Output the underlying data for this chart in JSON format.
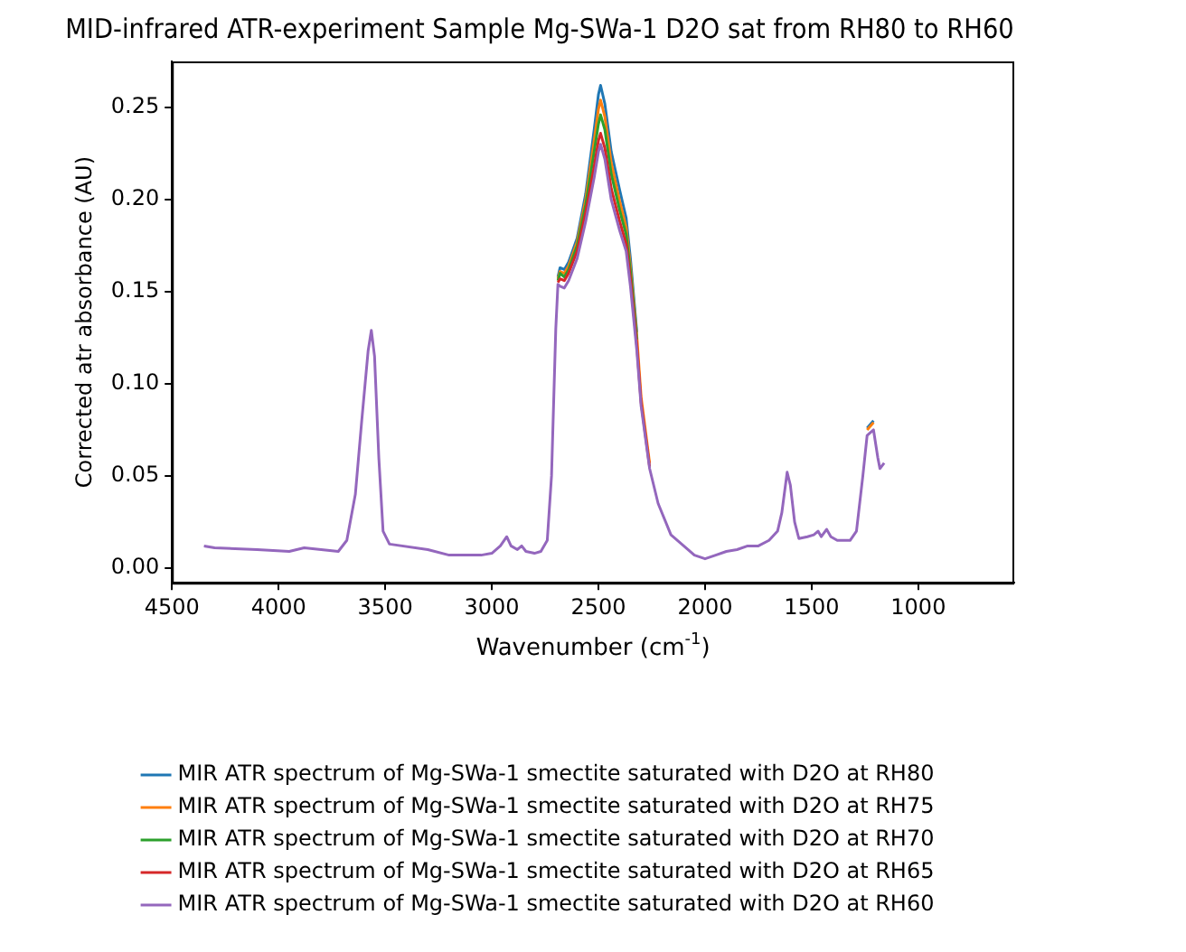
{
  "chart_data": {
    "type": "line",
    "title": "MID-infrared ATR-experiment Sample Mg-SWa-1 D2O sat from RH80 to RH60",
    "xlabel": "Wavenumber (cm$^{-1}$)",
    "ylabel": "Corrected atr absorbance (AU)",
    "xlim": [
      4500,
      550
    ],
    "xticks": [
      4500,
      4000,
      3500,
      3000,
      2500,
      2000,
      1500,
      1000
    ],
    "ylim": [
      -0.008,
      0.275
    ],
    "yticks": [
      {
        "value": 0,
        "label": "0.00"
      },
      {
        "value": 0.05,
        "label": "0.05"
      },
      {
        "value": 0.1,
        "label": "0.10"
      },
      {
        "value": 0.15,
        "label": "0.15"
      },
      {
        "value": 0.2,
        "label": "0.20"
      },
      {
        "value": 0.25,
        "label": "0.25"
      }
    ],
    "grid": false,
    "legend": "bottom",
    "x": [
      4350,
      4300,
      4100,
      3950,
      3880,
      3800,
      3720,
      3680,
      3640,
      3610,
      3580,
      3565,
      3550,
      3530,
      3510,
      3480,
      3300,
      3200,
      3050,
      3000,
      2960,
      2930,
      2910,
      2880,
      2860,
      2840,
      2800,
      2770,
      2740,
      2720,
      2700,
      2690,
      2680,
      2660,
      2640,
      2600,
      2560,
      2520,
      2500,
      2490,
      2470,
      2440,
      2400,
      2370,
      2350,
      2320,
      2300,
      2260,
      2220,
      2160,
      2100,
      2050,
      2000,
      1950,
      1900,
      1850,
      1800,
      1750,
      1700,
      1660,
      1640,
      1615,
      1600,
      1580,
      1560,
      1520,
      1490,
      1470,
      1455,
      1430,
      1410,
      1380,
      1320,
      1290,
      1260,
      1240,
      1210,
      1190,
      1180,
      1160
    ],
    "series": [
      {
        "name": "MIR ATR spectrum of Mg-SWa-1 smectite saturated with D2O at RH80",
        "color": "#1f77b4",
        "values": [
          null,
          null,
          null,
          null,
          null,
          null,
          null,
          null,
          null,
          null,
          null,
          null,
          null,
          null,
          null,
          null,
          null,
          null,
          null,
          null,
          null,
          null,
          null,
          null,
          null,
          null,
          null,
          null,
          null,
          null,
          null,
          0.158,
          0.163,
          0.162,
          0.166,
          0.179,
          0.203,
          0.238,
          0.257,
          0.262,
          0.252,
          0.226,
          0.205,
          0.19,
          0.168,
          0.128,
          null,
          null,
          null,
          null,
          null,
          null,
          null,
          null,
          null,
          null,
          null,
          null,
          null,
          null,
          null,
          null,
          null,
          null,
          null,
          null,
          null,
          null,
          null,
          null,
          null,
          null,
          null,
          null,
          null,
          0.076,
          0.08,
          null,
          null,
          null
        ]
      },
      {
        "name": "MIR ATR spectrum of Mg-SWa-1 smectite saturated with D2O at RH75",
        "color": "#ff7f0e",
        "values": [
          null,
          null,
          null,
          null,
          null,
          null,
          null,
          null,
          null,
          null,
          null,
          null,
          null,
          null,
          null,
          null,
          null,
          null,
          null,
          null,
          null,
          null,
          null,
          null,
          null,
          null,
          null,
          null,
          null,
          null,
          null,
          0.157,
          0.161,
          0.16,
          0.164,
          0.177,
          0.2,
          0.232,
          0.249,
          0.254,
          0.245,
          0.22,
          0.199,
          0.185,
          0.164,
          0.126,
          0.093,
          0.057,
          null,
          null,
          null,
          null,
          null,
          null,
          null,
          null,
          null,
          null,
          null,
          null,
          null,
          null,
          null,
          null,
          null,
          null,
          null,
          null,
          null,
          null,
          null,
          null,
          null,
          null,
          null,
          0.075,
          0.079,
          null,
          null,
          null
        ]
      },
      {
        "name": "MIR ATR spectrum of Mg-SWa-1 smectite saturated with D2O at RH70",
        "color": "#2ca02c",
        "values": [
          null,
          null,
          null,
          null,
          null,
          null,
          null,
          null,
          null,
          null,
          null,
          null,
          null,
          null,
          null,
          null,
          null,
          null,
          null,
          null,
          null,
          null,
          null,
          null,
          null,
          null,
          null,
          null,
          null,
          null,
          null,
          0.156,
          0.16,
          0.158,
          0.162,
          0.175,
          0.197,
          0.226,
          0.241,
          0.246,
          0.238,
          0.214,
          0.194,
          0.181,
          0.161,
          0.124,
          null,
          null,
          null,
          null,
          null,
          null,
          null,
          null,
          null,
          null,
          null,
          null,
          null,
          null,
          null,
          null,
          null,
          null,
          null,
          null,
          null,
          null,
          null,
          null,
          null,
          null,
          null,
          null,
          null,
          null,
          null,
          null,
          null,
          null
        ]
      },
      {
        "name": "MIR ATR spectrum of Mg-SWa-1 smectite saturated with D2O at RH65",
        "color": "#d62728",
        "values": [
          null,
          null,
          null,
          null,
          null,
          null,
          null,
          null,
          null,
          null,
          null,
          null,
          null,
          null,
          null,
          null,
          null,
          null,
          null,
          null,
          null,
          null,
          null,
          null,
          null,
          null,
          null,
          null,
          null,
          null,
          null,
          0.155,
          0.157,
          0.156,
          0.16,
          0.172,
          0.193,
          0.218,
          0.232,
          0.236,
          0.228,
          0.206,
          0.188,
          0.176,
          0.157,
          0.121,
          0.09,
          0.055,
          null,
          null,
          null,
          null,
          null,
          null,
          null,
          null,
          null,
          null,
          null,
          null,
          null,
          null,
          null,
          null,
          null,
          null,
          null,
          null,
          null,
          null,
          null,
          null,
          null,
          null,
          null,
          null,
          null,
          null,
          null,
          null
        ]
      },
      {
        "name": "MIR ATR spectrum of Mg-SWa-1 smectite saturated with D2O at RH60",
        "color": "#9467bd",
        "values": [
          0.012,
          0.011,
          0.01,
          0.009,
          0.011,
          0.01,
          0.009,
          0.015,
          0.04,
          0.08,
          0.118,
          0.129,
          0.115,
          0.06,
          0.02,
          0.013,
          0.01,
          0.007,
          0.007,
          0.008,
          0.012,
          0.017,
          0.012,
          0.01,
          0.012,
          0.009,
          0.008,
          0.009,
          0.015,
          0.05,
          0.13,
          0.154,
          0.153,
          0.152,
          0.156,
          0.168,
          0.188,
          0.212,
          0.226,
          0.23,
          0.222,
          0.2,
          0.183,
          0.172,
          0.153,
          0.118,
          0.088,
          0.054,
          0.035,
          0.018,
          0.012,
          0.007,
          0.005,
          0.007,
          0.009,
          0.01,
          0.012,
          0.012,
          0.015,
          0.02,
          0.03,
          0.052,
          0.045,
          0.025,
          0.016,
          0.017,
          0.018,
          0.02,
          0.017,
          0.021,
          0.017,
          0.015,
          0.015,
          0.02,
          0.05,
          0.072,
          0.075,
          0.06,
          0.054,
          0.057
        ]
      }
    ]
  }
}
